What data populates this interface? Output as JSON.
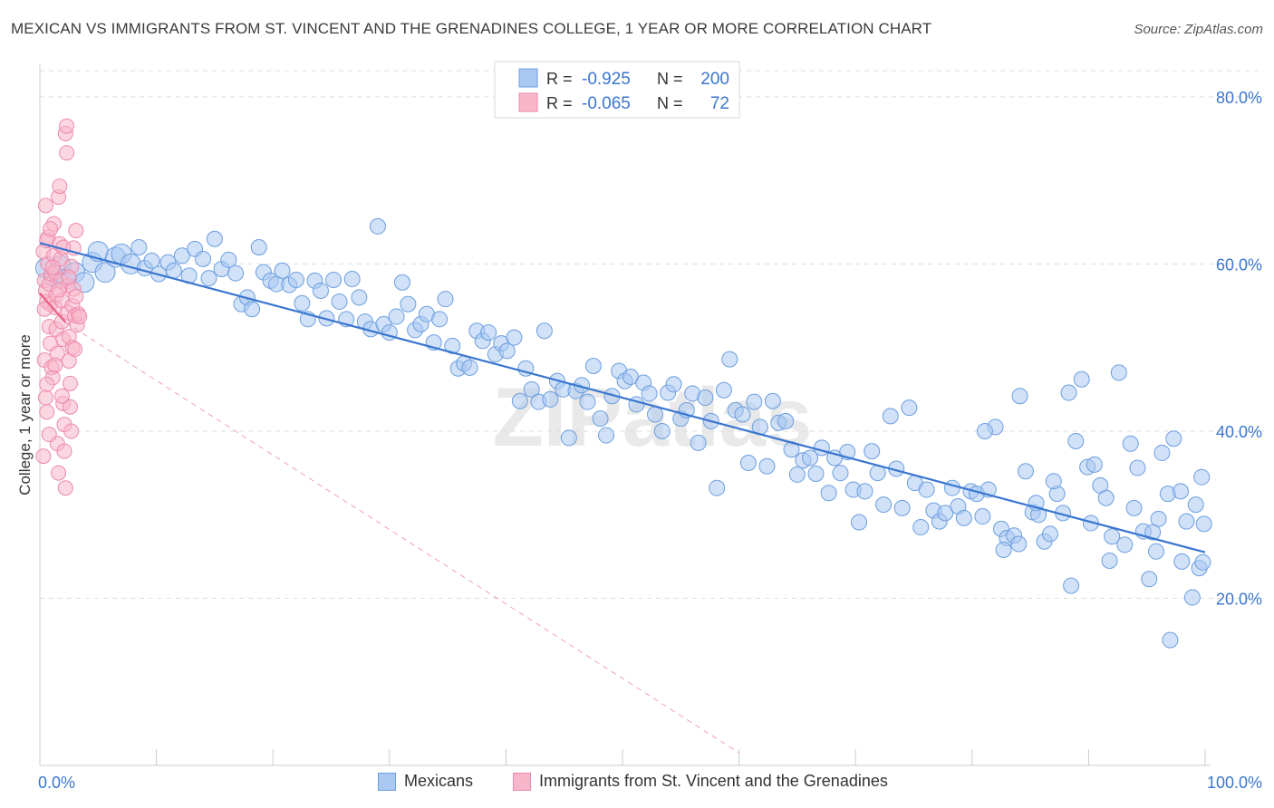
{
  "title": "MEXICAN VS IMMIGRANTS FROM ST. VINCENT AND THE GRENADINES COLLEGE, 1 YEAR OR MORE CORRELATION CHART",
  "source": "Source: ZipAtlas.com",
  "watermark": "ZIPatlas",
  "legend_top": [
    {
      "r_label": "R =",
      "r_value": "-0.925",
      "n_label": "N =",
      "n_value": "200"
    },
    {
      "r_label": "R =",
      "r_value": "-0.065",
      "n_label": "N =",
      "n_value": "72"
    }
  ],
  "colors": {
    "blue_fill": "#a9c8f2",
    "blue_stroke": "#6d9fdf",
    "blue_line": "#3a76cf",
    "pink_fill": "#f7b6ca",
    "pink_stroke": "#ee8aaa",
    "pink_line": "#e8608a",
    "tick_label": "#3a76cf",
    "grid": "#dddddd"
  },
  "chart_data": {
    "type": "scatter",
    "xlabel": "",
    "ylabel": "College, 1 year or more",
    "xlim": [
      0,
      100
    ],
    "ylim": [
      0,
      84
    ],
    "x_tick_labels": [
      "0.0%",
      "100.0%"
    ],
    "y_ticks": [
      20,
      40,
      60,
      80
    ],
    "y_tick_labels": [
      "20.0%",
      "40.0%",
      "60.0%",
      "80.0%"
    ],
    "grid": true,
    "legend_placement": "bottom",
    "series": [
      {
        "name": "Mexicans",
        "color": "#a9c8f2",
        "trend": {
          "x0": 0,
          "y0": 62.5,
          "x1": 100,
          "y1": 25.5
        },
        "points": [
          [
            0.5,
            59.5
          ],
          [
            1.2,
            58.5
          ],
          [
            1.8,
            59.8
          ],
          [
            2.3,
            58.2
          ],
          [
            3.0,
            59.0
          ],
          [
            3.8,
            57.8
          ],
          [
            4.5,
            60.2
          ],
          [
            5.0,
            61.5
          ],
          [
            5.6,
            59.0
          ],
          [
            6.5,
            60.8
          ],
          [
            7.0,
            61.2
          ],
          [
            7.8,
            60.0
          ],
          [
            8.5,
            62.0
          ],
          [
            9.0,
            59.5
          ],
          [
            9.6,
            60.4
          ],
          [
            10.2,
            58.8
          ],
          [
            11.0,
            60.2
          ],
          [
            11.5,
            59.2
          ],
          [
            12.2,
            61.0
          ],
          [
            12.8,
            58.6
          ],
          [
            13.3,
            61.8
          ],
          [
            14.0,
            60.6
          ],
          [
            14.5,
            58.3
          ],
          [
            15.0,
            63.0
          ],
          [
            15.6,
            59.4
          ],
          [
            16.2,
            60.5
          ],
          [
            16.8,
            58.9
          ],
          [
            17.3,
            55.2
          ],
          [
            17.8,
            56.0
          ],
          [
            18.2,
            54.6
          ],
          [
            18.8,
            62.0
          ],
          [
            19.2,
            59.0
          ],
          [
            19.8,
            58.0
          ],
          [
            20.3,
            57.6
          ],
          [
            20.8,
            59.2
          ],
          [
            21.4,
            57.5
          ],
          [
            22.0,
            58.1
          ],
          [
            22.5,
            55.3
          ],
          [
            23.0,
            53.4
          ],
          [
            23.6,
            58.0
          ],
          [
            24.1,
            56.8
          ],
          [
            24.6,
            53.5
          ],
          [
            25.2,
            58.1
          ],
          [
            25.7,
            55.5
          ],
          [
            26.3,
            53.4
          ],
          [
            26.8,
            58.2
          ],
          [
            27.4,
            56.0
          ],
          [
            27.9,
            53.1
          ],
          [
            28.4,
            52.2
          ],
          [
            29.0,
            64.5
          ],
          [
            29.5,
            52.8
          ],
          [
            30.0,
            51.8
          ],
          [
            30.6,
            53.7
          ],
          [
            31.1,
            57.8
          ],
          [
            31.6,
            55.2
          ],
          [
            32.2,
            52.1
          ],
          [
            32.7,
            52.8
          ],
          [
            33.2,
            54.0
          ],
          [
            33.8,
            50.6
          ],
          [
            34.3,
            53.4
          ],
          [
            34.8,
            55.8
          ],
          [
            35.4,
            50.2
          ],
          [
            35.9,
            47.5
          ],
          [
            36.4,
            48.1
          ],
          [
            36.9,
            47.6
          ],
          [
            37.5,
            52.0
          ],
          [
            38.0,
            50.8
          ],
          [
            38.5,
            51.8
          ],
          [
            39.1,
            49.2
          ],
          [
            39.6,
            50.5
          ],
          [
            40.1,
            49.6
          ],
          [
            40.7,
            51.2
          ],
          [
            41.2,
            43.6
          ],
          [
            41.7,
            47.5
          ],
          [
            42.2,
            45.0
          ],
          [
            42.8,
            43.5
          ],
          [
            43.3,
            52.0
          ],
          [
            43.8,
            43.8
          ],
          [
            44.4,
            46.0
          ],
          [
            44.9,
            45.0
          ],
          [
            45.4,
            39.2
          ],
          [
            46.0,
            44.8
          ],
          [
            46.5,
            45.5
          ],
          [
            47.0,
            43.5
          ],
          [
            47.5,
            47.8
          ],
          [
            48.1,
            41.5
          ],
          [
            48.6,
            39.5
          ],
          [
            49.1,
            44.2
          ],
          [
            49.7,
            47.2
          ],
          [
            50.2,
            46.0
          ],
          [
            50.7,
            46.5
          ],
          [
            51.2,
            43.2
          ],
          [
            51.8,
            45.8
          ],
          [
            52.3,
            44.5
          ],
          [
            52.8,
            42.0
          ],
          [
            53.4,
            40.0
          ],
          [
            53.9,
            44.6
          ],
          [
            54.4,
            45.6
          ],
          [
            55.0,
            41.5
          ],
          [
            55.5,
            42.5
          ],
          [
            56.0,
            44.5
          ],
          [
            56.5,
            38.6
          ],
          [
            57.1,
            44.0
          ],
          [
            57.6,
            41.2
          ],
          [
            58.1,
            33.2
          ],
          [
            58.7,
            44.9
          ],
          [
            59.2,
            48.6
          ],
          [
            59.7,
            42.5
          ],
          [
            60.3,
            42.0
          ],
          [
            60.8,
            36.2
          ],
          [
            61.3,
            43.5
          ],
          [
            61.8,
            40.5
          ],
          [
            62.4,
            35.8
          ],
          [
            62.9,
            43.6
          ],
          [
            63.4,
            41.0
          ],
          [
            64.0,
            41.2
          ],
          [
            64.5,
            37.8
          ],
          [
            65.0,
            34.8
          ],
          [
            65.5,
            36.5
          ],
          [
            66.1,
            36.8
          ],
          [
            66.6,
            34.9
          ],
          [
            67.1,
            38.0
          ],
          [
            67.7,
            32.6
          ],
          [
            68.2,
            36.8
          ],
          [
            68.7,
            35.0
          ],
          [
            69.3,
            37.5
          ],
          [
            69.8,
            33.0
          ],
          [
            70.3,
            29.1
          ],
          [
            70.8,
            32.8
          ],
          [
            71.4,
            37.6
          ],
          [
            71.9,
            35.0
          ],
          [
            72.4,
            31.2
          ],
          [
            73.0,
            41.8
          ],
          [
            73.5,
            35.5
          ],
          [
            74.0,
            30.8
          ],
          [
            74.6,
            42.8
          ],
          [
            75.1,
            33.8
          ],
          [
            75.6,
            28.5
          ],
          [
            76.1,
            33.0
          ],
          [
            76.7,
            30.5
          ],
          [
            77.2,
            29.2
          ],
          [
            77.7,
            30.2
          ],
          [
            78.3,
            33.2
          ],
          [
            78.8,
            31.0
          ],
          [
            79.3,
            29.6
          ],
          [
            79.9,
            32.8
          ],
          [
            80.4,
            32.5
          ],
          [
            80.9,
            29.8
          ],
          [
            81.4,
            33.0
          ],
          [
            82.0,
            40.5
          ],
          [
            82.5,
            28.3
          ],
          [
            83.0,
            27.2
          ],
          [
            83.6,
            27.5
          ],
          [
            84.1,
            44.2
          ],
          [
            84.6,
            35.2
          ],
          [
            85.2,
            30.3
          ],
          [
            85.7,
            30.0
          ],
          [
            86.2,
            26.8
          ],
          [
            86.7,
            27.7
          ],
          [
            87.3,
            32.5
          ],
          [
            87.8,
            30.2
          ],
          [
            88.3,
            44.6
          ],
          [
            88.9,
            38.8
          ],
          [
            89.4,
            46.2
          ],
          [
            89.9,
            35.7
          ],
          [
            90.5,
            36.0
          ],
          [
            91.0,
            33.5
          ],
          [
            91.5,
            32.0
          ],
          [
            92.0,
            27.4
          ],
          [
            92.6,
            47.0
          ],
          [
            93.1,
            26.4
          ],
          [
            93.6,
            38.5
          ],
          [
            94.2,
            35.6
          ],
          [
            94.7,
            28.0
          ],
          [
            95.2,
            22.3
          ],
          [
            95.8,
            25.6
          ],
          [
            96.3,
            37.4
          ],
          [
            96.8,
            32.5
          ],
          [
            97.3,
            39.1
          ],
          [
            97.9,
            32.8
          ],
          [
            98.4,
            29.2
          ],
          [
            98.9,
            20.1
          ],
          [
            99.5,
            23.6
          ],
          [
            99.7,
            34.5
          ],
          [
            99.8,
            24.3
          ],
          [
            99.9,
            28.9
          ],
          [
            96.0,
            29.5
          ],
          [
            93.9,
            30.8
          ],
          [
            91.8,
            24.5
          ],
          [
            90.2,
            29.0
          ],
          [
            88.5,
            21.5
          ],
          [
            87.0,
            34.0
          ],
          [
            85.5,
            31.4
          ],
          [
            84.0,
            26.5
          ],
          [
            82.7,
            25.8
          ],
          [
            81.1,
            40.0
          ],
          [
            97.0,
            15.0
          ],
          [
            98.0,
            24.4
          ],
          [
            99.2,
            31.2
          ],
          [
            95.5,
            27.9
          ]
        ]
      },
      {
        "name": "Immigrants from St. Vincent and the Grenadines",
        "color": "#f7b6ca",
        "trend": {
          "x0": 0,
          "y0": 56.5,
          "x1": 2.2,
          "y1": 53.0
        },
        "trend_extension": {
          "x0": 2.2,
          "y0": 53.0,
          "x1": 60,
          "y1": 1.5
        },
        "points": [
          [
            0.3,
            61.5
          ],
          [
            0.4,
            58.0
          ],
          [
            0.5,
            56.8
          ],
          [
            0.6,
            55.5
          ],
          [
            0.7,
            63.2
          ],
          [
            0.8,
            52.5
          ],
          [
            0.4,
            48.5
          ],
          [
            0.5,
            44.0
          ],
          [
            0.6,
            42.3
          ],
          [
            0.3,
            37.0
          ],
          [
            0.5,
            67.0
          ],
          [
            0.6,
            62.8
          ],
          [
            0.7,
            60.0
          ],
          [
            0.8,
            57.6
          ],
          [
            0.9,
            55.2
          ],
          [
            0.9,
            50.5
          ],
          [
            1.0,
            58.8
          ],
          [
            1.0,
            47.6
          ],
          [
            1.1,
            46.4
          ],
          [
            1.2,
            64.8
          ],
          [
            1.2,
            61.0
          ],
          [
            1.3,
            59.0
          ],
          [
            1.3,
            54.8
          ],
          [
            1.4,
            56.3
          ],
          [
            1.4,
            52.2
          ],
          [
            1.5,
            49.3
          ],
          [
            1.5,
            38.5
          ],
          [
            1.6,
            35.0
          ],
          [
            1.6,
            68.0
          ],
          [
            1.7,
            69.3
          ],
          [
            1.7,
            62.4
          ],
          [
            1.8,
            60.6
          ],
          [
            1.8,
            58.0
          ],
          [
            1.9,
            55.6
          ],
          [
            1.9,
            53.1
          ],
          [
            2.0,
            51.0
          ],
          [
            2.0,
            43.3
          ],
          [
            2.1,
            40.8
          ],
          [
            2.1,
            37.6
          ],
          [
            2.2,
            33.2
          ],
          [
            2.2,
            75.6
          ],
          [
            2.3,
            76.5
          ],
          [
            2.3,
            73.3
          ],
          [
            2.4,
            57.4
          ],
          [
            2.4,
            54.2
          ],
          [
            2.5,
            51.3
          ],
          [
            2.5,
            48.4
          ],
          [
            2.6,
            45.7
          ],
          [
            2.6,
            42.9
          ],
          [
            2.7,
            40.0
          ],
          [
            2.7,
            59.7
          ],
          [
            2.8,
            55.0
          ],
          [
            2.8,
            50.0
          ],
          [
            2.9,
            61.9
          ],
          [
            2.9,
            57.0
          ],
          [
            3.0,
            53.8
          ],
          [
            3.0,
            49.8
          ],
          [
            3.1,
            64.0
          ],
          [
            3.1,
            56.1
          ],
          [
            3.2,
            52.7
          ],
          [
            3.3,
            54.0
          ],
          [
            3.4,
            53.7
          ],
          [
            0.9,
            64.2
          ],
          [
            1.1,
            59.6
          ],
          [
            0.6,
            45.6
          ],
          [
            1.6,
            56.9
          ],
          [
            2.0,
            62.0
          ],
          [
            1.3,
            47.9
          ],
          [
            0.4,
            54.6
          ],
          [
            0.8,
            39.6
          ],
          [
            1.9,
            44.2
          ],
          [
            2.5,
            58.4
          ]
        ]
      }
    ]
  }
}
